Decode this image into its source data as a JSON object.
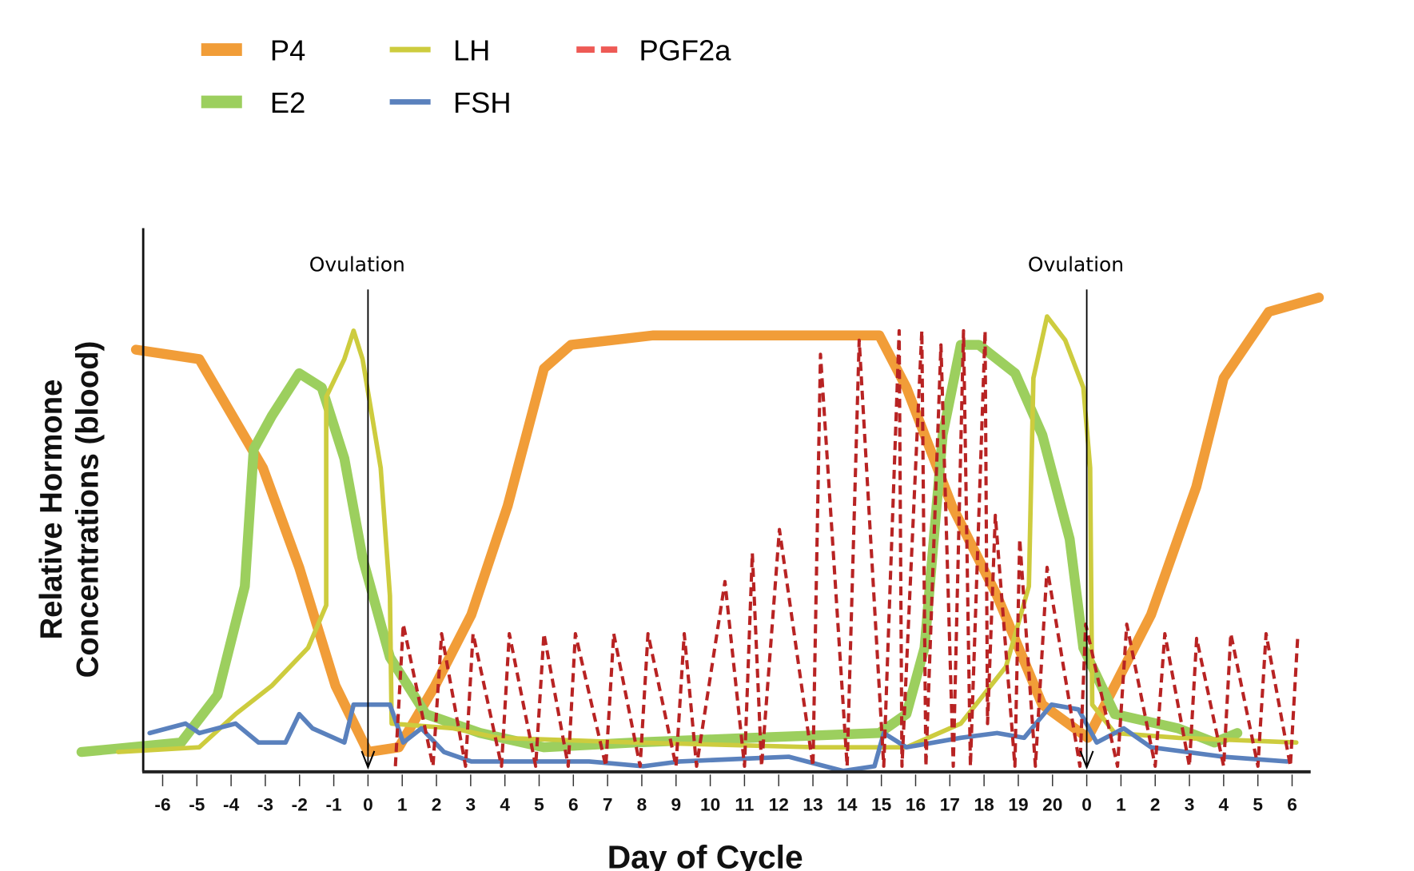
{
  "chart_data": {
    "type": "line",
    "xlabel": "Day of Cycle",
    "ylabel": [
      "Relative Hormone",
      "Concentrations (blood)"
    ],
    "xlim": [
      -7,
      28
    ],
    "ylim": [
      0,
      100
    ],
    "grid": false,
    "legend_placement": "top-left",
    "tick_days": [
      -6,
      -5,
      -4,
      -3,
      -2,
      -1,
      0,
      1,
      2,
      3,
      4,
      5,
      6,
      7,
      8,
      9,
      10,
      11,
      12,
      13,
      14,
      15,
      16,
      17,
      18,
      19,
      20,
      21,
      22,
      23,
      24,
      25,
      26,
      27
    ],
    "tick_labels": [
      "-6",
      "-5",
      "-4",
      "-3",
      "-2",
      "-1",
      "0",
      "1",
      "2",
      "3",
      "4",
      "5",
      "6",
      "7",
      "8",
      "9",
      "10",
      "11",
      "12",
      "13",
      "14",
      "15",
      "16",
      "17",
      "18",
      "19",
      "20",
      "0",
      "1",
      "2",
      "3",
      "4",
      "5",
      "6"
    ],
    "annotations": [
      {
        "text": "Ovulation",
        "day": 0
      },
      {
        "text": "Ovulation",
        "day": 21
      }
    ],
    "series": [
      {
        "name": "P4",
        "color": "#f19d38",
        "style": "solid-thick",
        "points": [
          [
            -6.78,
            89
          ],
          [
            -4.93,
            87
          ],
          [
            -3.07,
            64
          ],
          [
            -2.01,
            43
          ],
          [
            -0.95,
            18
          ],
          [
            0,
            4
          ],
          [
            0.9,
            5
          ],
          [
            1.96,
            18
          ],
          [
            3.02,
            33
          ],
          [
            4.08,
            56
          ],
          [
            5.14,
            85
          ],
          [
            5.93,
            90
          ],
          [
            8.32,
            92
          ],
          [
            14.94,
            92
          ],
          [
            15.73,
            81
          ],
          [
            17.06,
            56
          ],
          [
            18.38,
            37
          ],
          [
            19.7,
            14
          ],
          [
            21.03,
            7
          ],
          [
            21.82,
            18
          ],
          [
            22.88,
            33
          ],
          [
            24.2,
            60
          ],
          [
            25.0,
            83
          ],
          [
            26.32,
            97
          ],
          [
            27.78,
            100
          ]
        ]
      },
      {
        "name": "E2",
        "color": "#9ccf5e",
        "style": "solid-thick",
        "points": [
          [
            -8.37,
            4
          ],
          [
            -5.46,
            6
          ],
          [
            -4.4,
            16
          ],
          [
            -3.6,
            39
          ],
          [
            -3.34,
            68
          ],
          [
            -2.81,
            75
          ],
          [
            -2.01,
            84
          ],
          [
            -1.35,
            81
          ],
          [
            -0.69,
            66
          ],
          [
            -0.16,
            45
          ],
          [
            0.64,
            24
          ],
          [
            1.69,
            12
          ],
          [
            3.28,
            8
          ],
          [
            5.14,
            5
          ],
          [
            7.79,
            6
          ],
          [
            11.23,
            7
          ],
          [
            14.94,
            8
          ],
          [
            15.73,
            12
          ],
          [
            16.26,
            26
          ],
          [
            16.79,
            71
          ],
          [
            17.32,
            90
          ],
          [
            17.85,
            90
          ],
          [
            18.91,
            84
          ],
          [
            19.7,
            71
          ],
          [
            20.5,
            49
          ],
          [
            20.9,
            26
          ],
          [
            21.82,
            12
          ],
          [
            23.67,
            9
          ],
          [
            24.73,
            6
          ],
          [
            25.4,
            8
          ]
        ]
      },
      {
        "name": "LH",
        "color": "#cdcc3e",
        "style": "solid",
        "points": [
          [
            -7.3,
            4
          ],
          [
            -4.93,
            5
          ],
          [
            -3.87,
            12
          ],
          [
            -2.81,
            18
          ],
          [
            -1.75,
            26
          ],
          [
            -1.22,
            35
          ],
          [
            -1.22,
            79
          ],
          [
            -0.69,
            87
          ],
          [
            -0.42,
            93
          ],
          [
            -0.16,
            87
          ],
          [
            0.37,
            64
          ],
          [
            0.64,
            37
          ],
          [
            0.69,
            10
          ],
          [
            2.49,
            9
          ],
          [
            3.81,
            7
          ],
          [
            7.79,
            6
          ],
          [
            13.1,
            5
          ],
          [
            15.73,
            5
          ],
          [
            17.32,
            10
          ],
          [
            18.64,
            22
          ],
          [
            19.31,
            39
          ],
          [
            19.44,
            83
          ],
          [
            19.84,
            96
          ],
          [
            20.37,
            91
          ],
          [
            20.9,
            81
          ],
          [
            21.1,
            64
          ],
          [
            21.16,
            14
          ],
          [
            21.82,
            8
          ],
          [
            23.67,
            7
          ],
          [
            27.12,
            6
          ]
        ]
      },
      {
        "name": "FSH",
        "color": "#5a81bd",
        "style": "solid",
        "points": [
          [
            -6.38,
            8
          ],
          [
            -5.33,
            10
          ],
          [
            -4.93,
            8
          ],
          [
            -3.87,
            10
          ],
          [
            -3.2,
            6
          ],
          [
            -2.41,
            6
          ],
          [
            -2.01,
            12
          ],
          [
            -1.62,
            9
          ],
          [
            -0.69,
            6
          ],
          [
            -0.42,
            14
          ],
          [
            0.64,
            14
          ],
          [
            1.03,
            6
          ],
          [
            1.56,
            9
          ],
          [
            2.22,
            4
          ],
          [
            3.02,
            2
          ],
          [
            6.46,
            2
          ],
          [
            8.05,
            1
          ],
          [
            9.11,
            2
          ],
          [
            12.29,
            3
          ],
          [
            13.88,
            0
          ],
          [
            14.8,
            1
          ],
          [
            15.07,
            8
          ],
          [
            15.73,
            5
          ],
          [
            17.32,
            7
          ],
          [
            18.38,
            8
          ],
          [
            19.17,
            7
          ],
          [
            19.97,
            14
          ],
          [
            20.76,
            13
          ],
          [
            21.29,
            6
          ],
          [
            22.08,
            9
          ],
          [
            22.88,
            5
          ],
          [
            24.99,
            3
          ],
          [
            26.85,
            2
          ]
        ]
      },
      {
        "name": "PGF2a",
        "color": "#b82323",
        "legend_color": "#ee5a55",
        "style": "dashed",
        "points": [
          [
            0.8,
            1
          ],
          [
            1.03,
            31
          ],
          [
            1.9,
            1
          ],
          [
            2.15,
            29
          ],
          [
            2.85,
            1
          ],
          [
            3.07,
            29
          ],
          [
            3.9,
            1
          ],
          [
            4.13,
            29
          ],
          [
            4.9,
            1
          ],
          [
            5.14,
            29
          ],
          [
            5.85,
            1
          ],
          [
            6.06,
            29
          ],
          [
            6.95,
            1
          ],
          [
            7.18,
            29
          ],
          [
            7.95,
            1
          ],
          [
            8.18,
            29
          ],
          [
            9.0,
            1
          ],
          [
            9.24,
            29
          ],
          [
            9.6,
            1
          ],
          [
            10.43,
            40
          ],
          [
            11.0,
            1
          ],
          [
            11.23,
            46
          ],
          [
            11.5,
            1
          ],
          [
            12.02,
            51
          ],
          [
            13.0,
            1
          ],
          [
            13.22,
            88
          ],
          [
            14.0,
            1
          ],
          [
            14.35,
            91
          ],
          [
            15.07,
            1
          ],
          [
            15.52,
            93
          ],
          [
            15.6,
            1
          ],
          [
            16.18,
            93
          ],
          [
            16.3,
            1
          ],
          [
            16.74,
            90
          ],
          [
            17.1,
            1
          ],
          [
            17.4,
            93
          ],
          [
            17.6,
            1
          ],
          [
            18.03,
            93
          ],
          [
            18.1,
            10
          ],
          [
            18.33,
            54
          ],
          [
            18.9,
            1
          ],
          [
            19.04,
            49
          ],
          [
            19.5,
            1
          ],
          [
            19.84,
            43
          ],
          [
            20.8,
            1
          ],
          [
            20.97,
            31
          ],
          [
            21.9,
            1
          ],
          [
            22.17,
            31
          ],
          [
            23.0,
            1
          ],
          [
            23.28,
            29
          ],
          [
            24.0,
            1
          ],
          [
            24.21,
            28
          ],
          [
            25.0,
            1
          ],
          [
            25.21,
            29
          ],
          [
            26.0,
            1
          ],
          [
            26.24,
            29
          ],
          [
            26.95,
            1
          ],
          [
            27.17,
            29
          ]
        ]
      }
    ]
  }
}
